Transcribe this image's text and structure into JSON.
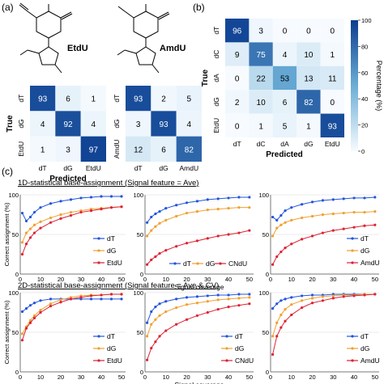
{
  "panel_labels": {
    "a": "(a)",
    "b": "(b)",
    "c": "(c)"
  },
  "molecules": {
    "left": "EtdU",
    "right": "AmdU"
  },
  "section_titles": {
    "s1": "1D-statistical base-assignment (Signal feature = Ave)",
    "s2": "2D-statistical base-assignment (Signal feature = Ave & CV)"
  },
  "colorbar": {
    "label": "Percentage (%)",
    "ticks": [
      "0",
      "20",
      "40",
      "60",
      "80",
      "100"
    ]
  },
  "colors": {
    "dT": "#2255dd",
    "dG": "#f0a030",
    "mod": "#dd2233",
    "cm_high": "#0b3d91",
    "cm_low": "#f7fbff"
  },
  "chart_data": [
    {
      "type": "heatmap",
      "id": "cm_etdu",
      "xlabel": "Predicted",
      "ylabel": "True",
      "x_labels": [
        "dT",
        "dG",
        "EtdU"
      ],
      "y_labels": [
        "dT",
        "dG",
        "EtdU"
      ],
      "values": [
        [
          93,
          6,
          1
        ],
        [
          4,
          92,
          4
        ],
        [
          1,
          3,
          97
        ]
      ]
    },
    {
      "type": "heatmap",
      "id": "cm_amdu",
      "xlabel": "",
      "ylabel": "",
      "x_labels": [
        "dT",
        "dG",
        "AmdU"
      ],
      "y_labels": [
        "dT",
        "dG",
        "AmdU"
      ],
      "values": [
        [
          93,
          2,
          5
        ],
        [
          3,
          93,
          4
        ],
        [
          12,
          6,
          82
        ]
      ]
    },
    {
      "type": "heatmap",
      "id": "cm_five",
      "xlabel": "Predicted",
      "ylabel": "True",
      "x_labels": [
        "dT",
        "dC",
        "dA",
        "dG",
        "EtdU"
      ],
      "y_labels": [
        "dT",
        "dC",
        "dA",
        "dG",
        "EtdU"
      ],
      "values": [
        [
          96,
          3,
          0,
          0,
          0
        ],
        [
          9,
          75,
          4,
          10,
          1
        ],
        [
          0,
          22,
          53,
          13,
          11
        ],
        [
          2,
          10,
          6,
          82,
          0
        ],
        [
          0,
          1,
          5,
          1,
          93
        ]
      ],
      "colorbar_range": [
        0,
        100
      ]
    },
    {
      "type": "line",
      "id": "p1d_etdu",
      "ylabel": "Correct assignment (%)",
      "xlabel": "",
      "x": [
        1,
        3,
        5,
        7,
        10,
        15,
        20,
        25,
        30,
        35,
        40,
        45,
        50
      ],
      "xlim": [
        0,
        52
      ],
      "ylim": [
        0,
        100
      ],
      "xticks": [
        "0",
        "10",
        "20",
        "30",
        "40",
        "50"
      ],
      "yticks": [
        "0",
        "50",
        "100"
      ],
      "series": [
        {
          "name": "dT",
          "values": [
            77,
            67,
            72,
            78,
            84,
            89,
            92,
            94,
            96,
            97,
            98,
            98,
            98
          ]
        },
        {
          "name": "dG",
          "values": [
            40,
            52,
            57,
            62,
            66,
            71,
            75,
            78,
            80,
            82,
            83,
            84,
            85
          ]
        },
        {
          "name": "EtdU",
          "values": [
            25,
            38,
            46,
            52,
            58,
            65,
            70,
            74,
            78,
            80,
            82,
            84,
            85
          ]
        }
      ]
    },
    {
      "type": "line",
      "id": "p1d_cndu",
      "ylabel": "",
      "xlabel": "Signal coverage",
      "x": [
        1,
        3,
        5,
        7,
        10,
        15,
        20,
        25,
        30,
        35,
        40,
        45,
        50
      ],
      "xlim": [
        0,
        52
      ],
      "ylim": [
        0,
        100
      ],
      "xticks": [
        "0",
        "10",
        "20",
        "30",
        "40",
        "50"
      ],
      "yticks": [
        "0",
        "50",
        "100"
      ],
      "series": [
        {
          "name": "dT",
          "values": [
            65,
            72,
            76,
            79,
            83,
            87,
            90,
            92,
            94,
            95,
            96,
            97,
            97
          ]
        },
        {
          "name": "dG",
          "values": [
            48,
            55,
            60,
            64,
            68,
            73,
            77,
            79,
            81,
            82,
            83,
            84,
            84
          ]
        },
        {
          "name": "CNdU",
          "values": [
            12,
            18,
            22,
            26,
            30,
            35,
            39,
            42,
            45,
            48,
            50,
            52,
            55
          ]
        }
      ]
    },
    {
      "type": "line",
      "id": "p1d_amdu",
      "ylabel": "",
      "xlabel": "",
      "x": [
        1,
        3,
        5,
        7,
        10,
        15,
        20,
        25,
        30,
        35,
        40,
        45,
        50
      ],
      "xlim": [
        0,
        52
      ],
      "ylim": [
        0,
        100
      ],
      "xticks": [
        "0",
        "10",
        "20",
        "30",
        "40",
        "50"
      ],
      "yticks": [
        "0",
        "50",
        "100"
      ],
      "series": [
        {
          "name": "dT",
          "values": [
            72,
            68,
            74,
            80,
            84,
            88,
            91,
            93,
            94,
            95,
            96,
            96,
            97
          ]
        },
        {
          "name": "dG",
          "values": [
            48,
            58,
            62,
            65,
            68,
            71,
            73,
            75,
            76,
            77,
            78,
            78,
            79
          ]
        },
        {
          "name": "AmdU",
          "values": [
            12,
            22,
            28,
            33,
            38,
            44,
            48,
            52,
            55,
            57,
            59,
            61,
            62
          ]
        }
      ]
    },
    {
      "type": "line",
      "id": "p2d_etdu",
      "ylabel": "Correct assignment (%)",
      "xlabel": "",
      "x": [
        1,
        3,
        5,
        7,
        10,
        15,
        20,
        25,
        30,
        35,
        40,
        45,
        50
      ],
      "xlim": [
        0,
        52
      ],
      "ylim": [
        0,
        100
      ],
      "xticks": [
        "0",
        "10",
        "20",
        "30",
        "40",
        "50"
      ],
      "yticks": [
        "0",
        "50",
        "100"
      ],
      "series": [
        {
          "name": "dT",
          "values": [
            76,
            80,
            84,
            87,
            90,
            92,
            92,
            92,
            92,
            92,
            92,
            92,
            92
          ]
        },
        {
          "name": "dG",
          "values": [
            48,
            57,
            65,
            71,
            78,
            86,
            91,
            94,
            96,
            97,
            97,
            98,
            98
          ]
        },
        {
          "name": "EtdU",
          "values": [
            40,
            55,
            62,
            68,
            75,
            83,
            88,
            92,
            94,
            96,
            97,
            98,
            98
          ]
        }
      ]
    },
    {
      "type": "line",
      "id": "p2d_cndu",
      "ylabel": "",
      "xlabel": "Signal coverage",
      "x": [
        1,
        3,
        5,
        7,
        10,
        15,
        20,
        25,
        30,
        35,
        40,
        45,
        50
      ],
      "xlim": [
        0,
        52
      ],
      "ylim": [
        0,
        100
      ],
      "xticks": [
        "0",
        "10",
        "20",
        "30",
        "40",
        "50"
      ],
      "yticks": [
        "0",
        "50",
        "100"
      ],
      "series": [
        {
          "name": "dT",
          "values": [
            62,
            76,
            82,
            86,
            89,
            92,
            94,
            95,
            96,
            97,
            97,
            98,
            98
          ]
        },
        {
          "name": "dG",
          "values": [
            45,
            60,
            66,
            71,
            76,
            81,
            85,
            87,
            89,
            91,
            92,
            93,
            94
          ]
        },
        {
          "name": "CNdU",
          "values": [
            15,
            30,
            38,
            45,
            52,
            60,
            66,
            71,
            75,
            79,
            82,
            84,
            86
          ]
        }
      ]
    },
    {
      "type": "line",
      "id": "p2d_amdu",
      "ylabel": "",
      "xlabel": "",
      "x": [
        1,
        3,
        5,
        7,
        10,
        15,
        20,
        25,
        30,
        35,
        40,
        45,
        50
      ],
      "xlim": [
        0,
        52
      ],
      "ylim": [
        0,
        100
      ],
      "xticks": [
        "0",
        "10",
        "20",
        "30",
        "40",
        "50"
      ],
      "yticks": [
        "0",
        "50",
        "100"
      ],
      "series": [
        {
          "name": "dT",
          "values": [
            80,
            86,
            90,
            92,
            94,
            96,
            97,
            97,
            98,
            98,
            98,
            98,
            98
          ]
        },
        {
          "name": "dG",
          "values": [
            45,
            62,
            72,
            79,
            85,
            90,
            93,
            95,
            96,
            97,
            97,
            98,
            98
          ]
        },
        {
          "name": "AmdU",
          "values": [
            22,
            45,
            56,
            64,
            72,
            81,
            87,
            90,
            93,
            95,
            96,
            97,
            98
          ]
        }
      ]
    }
  ]
}
